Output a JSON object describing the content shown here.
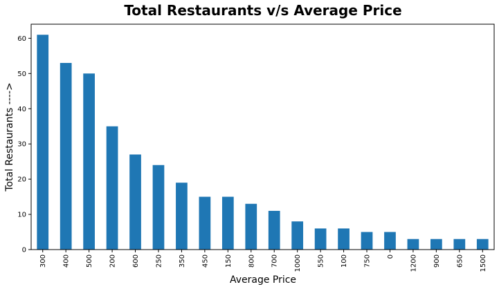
{
  "chart_data": {
    "type": "bar",
    "title": "Total Restaurants v/s Average Price",
    "xlabel": "Average Price",
    "ylabel": "Total Restaurants ---->",
    "categories": [
      "300",
      "400",
      "500",
      "200",
      "600",
      "250",
      "350",
      "450",
      "150",
      "800",
      "700",
      "1000",
      "550",
      "100",
      "750",
      "0",
      "1200",
      "900",
      "650",
      "1500"
    ],
    "values": [
      61,
      53,
      50,
      35,
      27,
      24,
      19,
      15,
      15,
      13,
      11,
      8,
      6,
      6,
      5,
      5,
      3,
      3,
      3,
      3
    ],
    "ylim": [
      0,
      64
    ],
    "yticks": [
      0,
      10,
      20,
      30,
      40,
      50,
      60
    ],
    "grid": false,
    "bar_color": "#1f77b4"
  }
}
